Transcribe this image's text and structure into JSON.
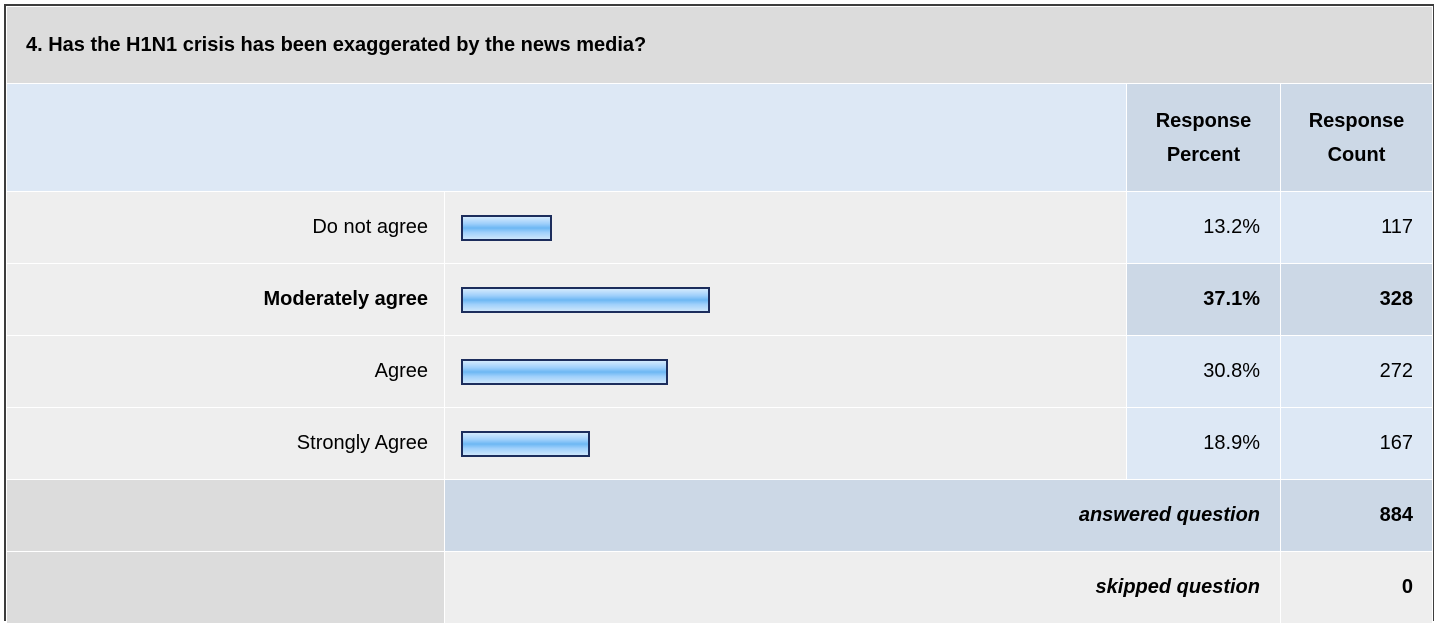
{
  "question": "4. Has the H1N1 crisis has been exaggerated by the news media?",
  "headers": {
    "percent": "Response Percent",
    "count": "Response Count"
  },
  "rows": [
    {
      "label": "Do not agree",
      "percent": "13.2%",
      "count": "117"
    },
    {
      "label": "Moderately agree",
      "percent": "37.1%",
      "count": "328"
    },
    {
      "label": "Agree",
      "percent": "30.8%",
      "count": "272"
    },
    {
      "label": "Strongly Agree",
      "percent": "18.9%",
      "count": "167"
    }
  ],
  "footer": {
    "answered_label": "answered question",
    "answered_value": "884",
    "skipped_label": "skipped question",
    "skipped_value": "0"
  },
  "chart_data": {
    "type": "bar",
    "orientation": "horizontal",
    "categories": [
      "Do not agree",
      "Moderately agree",
      "Agree",
      "Strongly Agree"
    ],
    "values": [
      13.2,
      37.1,
      30.8,
      18.9
    ],
    "counts": [
      117,
      328,
      272,
      167
    ],
    "highlighted_category": "Moderately agree",
    "bar_color": "#8ac8f8",
    "bar_border_color": "#1c2d5c"
  }
}
